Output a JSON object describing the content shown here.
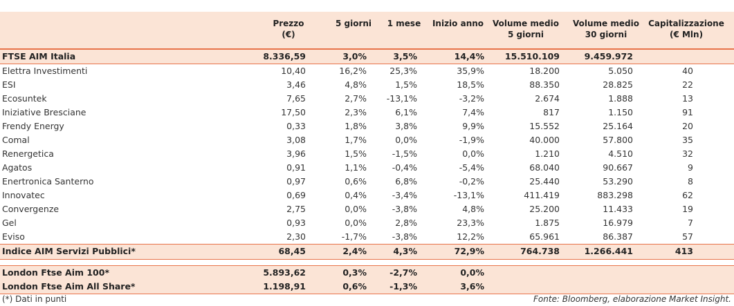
{
  "header": {
    "prezzo": [
      "Prezzo",
      "(€)"
    ],
    "g5": "5 giorni",
    "m1": "1 mese",
    "anno": "Inizio anno",
    "vm5": [
      "Volume medio",
      "5 giorni"
    ],
    "vm30": [
      "Volume medio",
      "30 giorni"
    ],
    "cap": [
      "Capitalizzazione",
      "(€ Mln)"
    ]
  },
  "index_row": {
    "name": "FTSE AIM Italia",
    "prezzo": "8.336,59",
    "g5": "3,0%",
    "m1": "3,5%",
    "anno": "14,4%",
    "vm5": "15.510.109",
    "vm30": "9.459.972",
    "cap": ""
  },
  "rows": [
    {
      "name": "Elettra Investimenti",
      "prezzo": "10,40",
      "g5": "16,2%",
      "m1": "25,3%",
      "anno": "35,9%",
      "vm5": "18.200",
      "vm30": "5.050",
      "cap": "40"
    },
    {
      "name": "ESI",
      "prezzo": "3,46",
      "g5": "4,8%",
      "m1": "1,5%",
      "anno": "18,5%",
      "vm5": "88.350",
      "vm30": "28.825",
      "cap": "22"
    },
    {
      "name": "Ecosuntek",
      "prezzo": "7,65",
      "g5": "2,7%",
      "m1": "-13,1%",
      "anno": "-3,2%",
      "vm5": "2.674",
      "vm30": "1.888",
      "cap": "13"
    },
    {
      "name": "Iniziative Bresciane",
      "prezzo": "17,50",
      "g5": "2,3%",
      "m1": "6,1%",
      "anno": "7,4%",
      "vm5": "817",
      "vm30": "1.150",
      "cap": "91"
    },
    {
      "name": "Frendy Energy",
      "prezzo": "0,33",
      "g5": "1,8%",
      "m1": "3,8%",
      "anno": "9,9%",
      "vm5": "15.552",
      "vm30": "25.164",
      "cap": "20"
    },
    {
      "name": "Comal",
      "prezzo": "3,08",
      "g5": "1,7%",
      "m1": "0,0%",
      "anno": "-1,9%",
      "vm5": "40.000",
      "vm30": "57.800",
      "cap": "35"
    },
    {
      "name": "Renergetica",
      "prezzo": "3,96",
      "g5": "1,5%",
      "m1": "-1,5%",
      "anno": "0,0%",
      "vm5": "1.210",
      "vm30": "4.510",
      "cap": "32"
    },
    {
      "name": "Agatos",
      "prezzo": "0,91",
      "g5": "1,1%",
      "m1": "-0,4%",
      "anno": "-5,4%",
      "vm5": "68.040",
      "vm30": "90.667",
      "cap": "9"
    },
    {
      "name": "Enertronica Santerno",
      "prezzo": "0,97",
      "g5": "0,6%",
      "m1": "6,8%",
      "anno": "-0,2%",
      "vm5": "25.440",
      "vm30": "53.290",
      "cap": "8"
    },
    {
      "name": "Innovatec",
      "prezzo": "0,69",
      "g5": "0,4%",
      "m1": "-3,4%",
      "anno": "-13,1%",
      "vm5": "411.419",
      "vm30": "883.298",
      "cap": "62"
    },
    {
      "name": "Convergenze",
      "prezzo": "2,75",
      "g5": "0,0%",
      "m1": "-3,8%",
      "anno": "4,8%",
      "vm5": "25.200",
      "vm30": "11.433",
      "cap": "19"
    },
    {
      "name": "Gel",
      "prezzo": "0,93",
      "g5": "0,0%",
      "m1": "2,8%",
      "anno": "23,3%",
      "vm5": "1.875",
      "vm30": "16.979",
      "cap": "7"
    },
    {
      "name": "Eviso",
      "prezzo": "2,30",
      "g5": "-1,7%",
      "m1": "-3,8%",
      "anno": "12,2%",
      "vm5": "65.961",
      "vm30": "86.387",
      "cap": "57"
    }
  ],
  "summary_row": {
    "name": "Indice AIM Servizi Pubblici*",
    "prezzo": "68,45",
    "g5": "2,4%",
    "m1": "4,3%",
    "anno": "72,9%",
    "vm5": "764.738",
    "vm30": "1.266.441",
    "cap": "413"
  },
  "london_rows": [
    {
      "name": "London Ftse Aim 100*",
      "prezzo": "5.893,62",
      "g5": "0,3%",
      "m1": "-2,7%",
      "anno": "0,0%"
    },
    {
      "name": "London Ftse Aim All Share*",
      "prezzo": "1.198,91",
      "g5": "0,6%",
      "m1": "-1,3%",
      "anno": "3,6%"
    }
  ],
  "footer": {
    "note": "(*) Dati in punti",
    "source": "Fonte: Bloomberg, elaborazione Market Insight."
  },
  "colors": {
    "header_bg": "#fbe4d6",
    "rule": "#e8734a"
  }
}
